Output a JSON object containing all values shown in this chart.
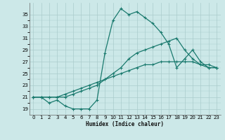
{
  "xlabel": "Humidex (Indice chaleur)",
  "bg_color": "#cce8e8",
  "line_color": "#1a7a6e",
  "xlim": [
    -0.5,
    23.5
  ],
  "ylim": [
    18.0,
    37.0
  ],
  "xticks": [
    0,
    1,
    2,
    3,
    4,
    5,
    6,
    7,
    8,
    9,
    10,
    11,
    12,
    13,
    14,
    15,
    16,
    17,
    18,
    19,
    20,
    21,
    22,
    23
  ],
  "yticks": [
    19,
    21,
    23,
    25,
    27,
    29,
    31,
    33,
    35
  ],
  "grid_color": "#aacccc",
  "series": [
    [
      21.0,
      21.0,
      20.0,
      20.5,
      19.5,
      19.0,
      19.0,
      19.0,
      20.5,
      28.5,
      34.0,
      36.0,
      35.0,
      35.5,
      34.5,
      33.5,
      32.0,
      30.0,
      26.0,
      27.5,
      29.0,
      27.0,
      26.0,
      26.0
    ],
    [
      21.0,
      21.0,
      21.0,
      21.0,
      21.0,
      21.5,
      22.0,
      22.5,
      23.0,
      24.0,
      25.0,
      26.0,
      27.5,
      28.5,
      29.0,
      29.5,
      30.0,
      30.5,
      31.0,
      29.0,
      27.5,
      26.5,
      26.0,
      26.0
    ],
    [
      21.0,
      21.0,
      21.0,
      21.0,
      21.5,
      22.0,
      22.5,
      23.0,
      23.5,
      24.0,
      24.5,
      25.0,
      25.5,
      26.0,
      26.5,
      26.5,
      27.0,
      27.0,
      27.0,
      27.0,
      27.0,
      26.5,
      26.5,
      26.0
    ]
  ]
}
